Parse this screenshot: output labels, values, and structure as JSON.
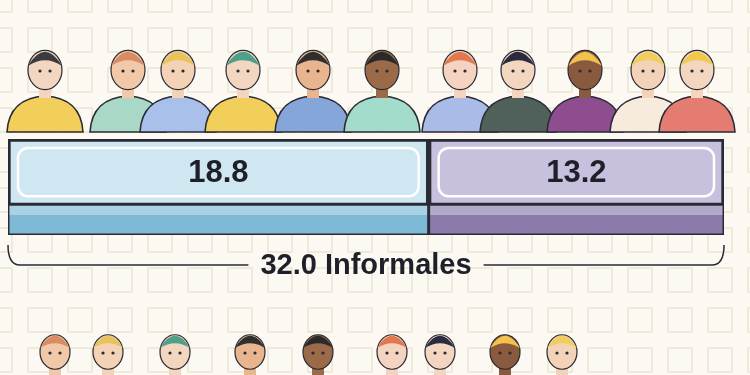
{
  "chart_data": {
    "type": "bar",
    "orientation": "horizontal",
    "stacked": true,
    "categories": [
      null
    ],
    "series": [
      {
        "color": "#cfe7f1",
        "values": [
          18.8
        ]
      },
      {
        "color": "#c8c1dd",
        "values": [
          13.2
        ]
      }
    ],
    "xlim": [
      0,
      32.0
    ],
    "tick_labels": false,
    "grid": false,
    "data_labels": true,
    "annotations": [
      "32.0 Informales"
    ]
  }
}
